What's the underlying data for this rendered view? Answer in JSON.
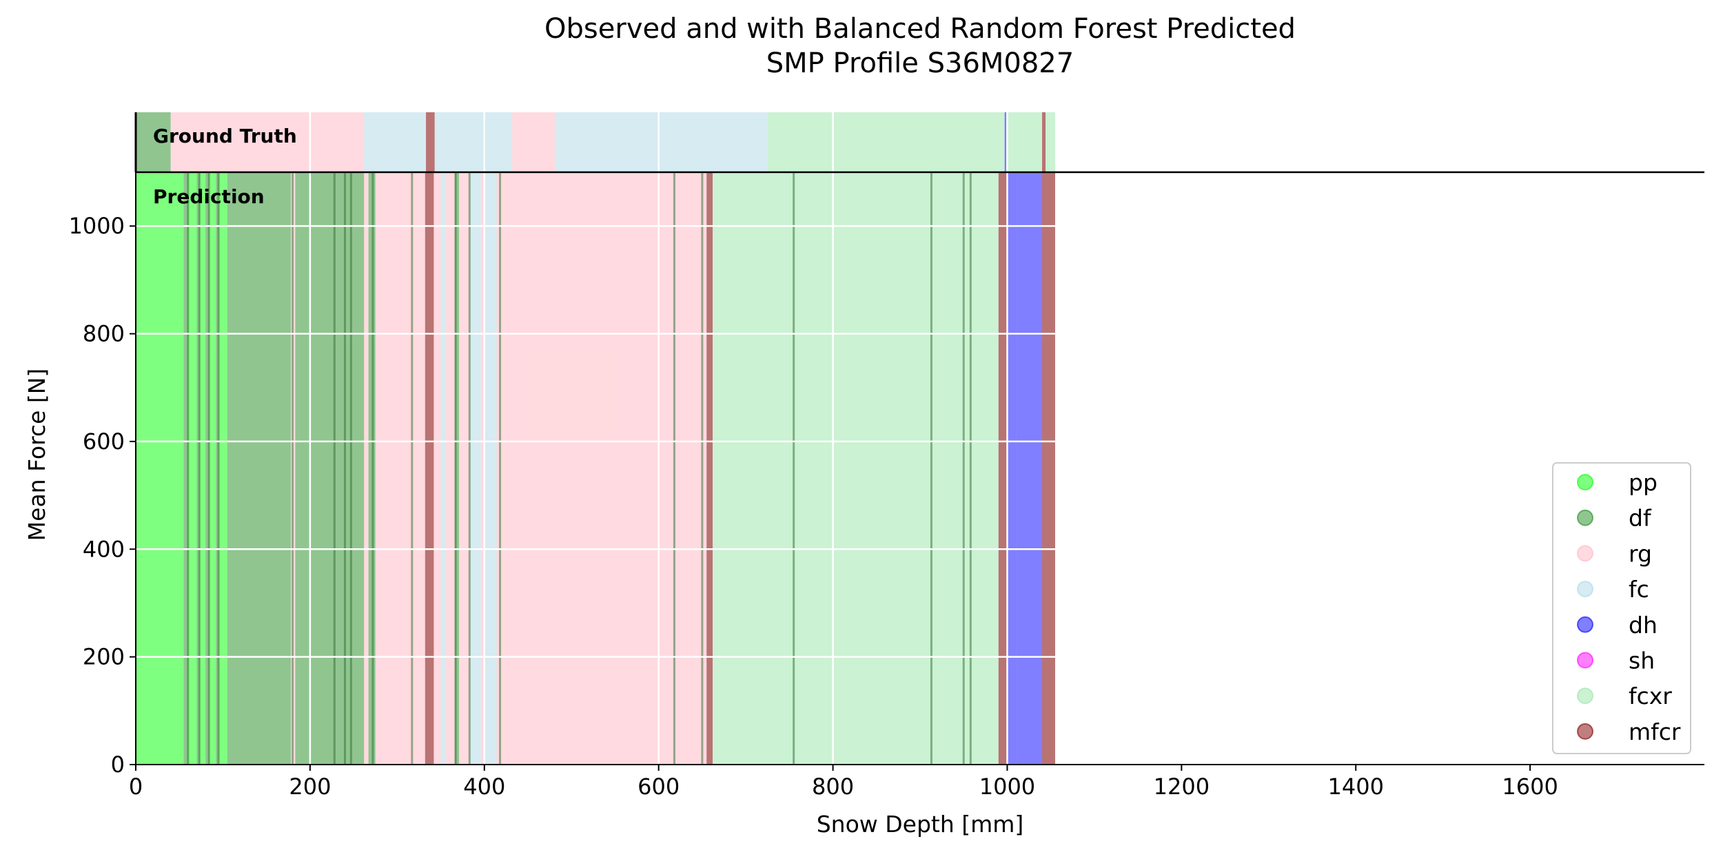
{
  "chart_data": {
    "type": "bar",
    "title_line1": "Observed and with Balanced Random Forest Predicted",
    "title_line2": "SMP Profile S36M0827",
    "xlabel": "Snow Depth [mm]",
    "ylabel": "Mean Force [N]",
    "xlim": [
      0,
      1800
    ],
    "ylim": [
      0,
      1100
    ],
    "xticks": [
      0,
      200,
      400,
      600,
      800,
      1000,
      1200,
      1400,
      1600
    ],
    "yticks": [
      0,
      200,
      400,
      600,
      800,
      1000
    ],
    "grid": true,
    "legend_position": "lower-right",
    "panel_labels": {
      "ground_truth": "Ground Truth",
      "prediction": "Prediction"
    },
    "classes": [
      {
        "name": "pp",
        "color": "#00ff00"
      },
      {
        "name": "df",
        "color": "#228b22"
      },
      {
        "name": "rg",
        "color": "#ffb6c1"
      },
      {
        "name": "fc",
        "color": "#add8e6"
      },
      {
        "name": "dh",
        "color": "#0000ff"
      },
      {
        "name": "sh",
        "color": "#ff00ff"
      },
      {
        "name": "fcxr",
        "color": "#98e5a8"
      },
      {
        "name": "mfcr",
        "color": "#800000"
      }
    ],
    "ground_truth_segments": [
      {
        "start": 0,
        "end": 40,
        "label": "df"
      },
      {
        "start": 40,
        "end": 262,
        "label": "rg"
      },
      {
        "start": 262,
        "end": 333,
        "label": "fc"
      },
      {
        "start": 333,
        "end": 343,
        "label": "mfcr"
      },
      {
        "start": 343,
        "end": 432,
        "label": "fc"
      },
      {
        "start": 432,
        "end": 481,
        "label": "rg"
      },
      {
        "start": 481,
        "end": 725,
        "label": "fc"
      },
      {
        "start": 725,
        "end": 997,
        "label": "fcxr"
      },
      {
        "start": 997,
        "end": 999,
        "label": "dh"
      },
      {
        "start": 999,
        "end": 1040,
        "label": "fcxr"
      },
      {
        "start": 1040,
        "end": 1044,
        "label": "mfcr"
      },
      {
        "start": 1044,
        "end": 1055,
        "label": "fcxr"
      }
    ],
    "prediction_segments": [
      {
        "start": 0,
        "end": 55,
        "label": "pp"
      },
      {
        "start": 55,
        "end": 60,
        "label": "df"
      },
      {
        "start": 60,
        "end": 70,
        "label": "pp"
      },
      {
        "start": 70,
        "end": 73,
        "label": "df"
      },
      {
        "start": 73,
        "end": 80,
        "label": "pp"
      },
      {
        "start": 80,
        "end": 84,
        "label": "df"
      },
      {
        "start": 84,
        "end": 92,
        "label": "pp"
      },
      {
        "start": 92,
        "end": 95,
        "label": "df"
      },
      {
        "start": 95,
        "end": 105,
        "label": "pp"
      },
      {
        "start": 105,
        "end": 178,
        "label": "df"
      },
      {
        "start": 178,
        "end": 183,
        "label": "rg"
      },
      {
        "start": 183,
        "end": 262,
        "label": "df"
      },
      {
        "start": 262,
        "end": 267,
        "label": "rg"
      },
      {
        "start": 267,
        "end": 275,
        "label": "df"
      },
      {
        "start": 275,
        "end": 282,
        "label": "rg"
      },
      {
        "start": 282,
        "end": 332,
        "label": "rg"
      },
      {
        "start": 332,
        "end": 342,
        "label": "mfcr"
      },
      {
        "start": 342,
        "end": 350,
        "label": "rg"
      },
      {
        "start": 350,
        "end": 356,
        "label": "fc"
      },
      {
        "start": 356,
        "end": 366,
        "label": "rg"
      },
      {
        "start": 366,
        "end": 371,
        "label": "df"
      },
      {
        "start": 371,
        "end": 383,
        "label": "rg"
      },
      {
        "start": 383,
        "end": 396,
        "label": "fc"
      },
      {
        "start": 396,
        "end": 400,
        "label": "rg"
      },
      {
        "start": 400,
        "end": 414,
        "label": "fc"
      },
      {
        "start": 414,
        "end": 425,
        "label": "rg"
      },
      {
        "start": 425,
        "end": 640,
        "label": "rg"
      },
      {
        "start": 640,
        "end": 655,
        "label": "rg"
      },
      {
        "start": 655,
        "end": 662,
        "label": "mfcr"
      },
      {
        "start": 662,
        "end": 690,
        "label": "fcxr"
      },
      {
        "start": 690,
        "end": 990,
        "label": "fcxr"
      },
      {
        "start": 990,
        "end": 1000,
        "label": "mfcr"
      },
      {
        "start": 1000,
        "end": 1010,
        "label": "dh"
      },
      {
        "start": 1010,
        "end": 1040,
        "label": "dh"
      },
      {
        "start": 1040,
        "end": 1055,
        "label": "mfcr"
      }
    ],
    "prediction_separators": [
      60,
      73,
      84,
      95,
      180,
      228,
      240,
      247,
      272,
      317,
      367,
      383,
      418,
      618,
      650,
      755,
      913,
      950,
      958
    ]
  }
}
